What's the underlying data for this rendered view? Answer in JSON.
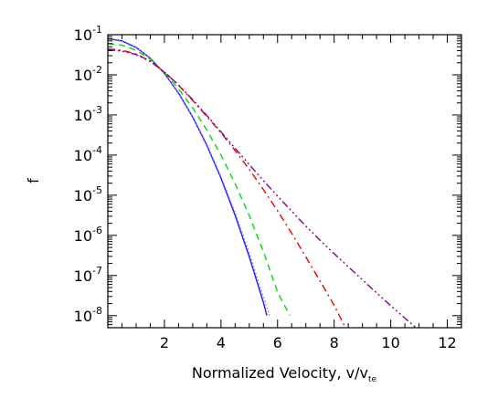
{
  "chart_data": {
    "type": "line",
    "title": "",
    "xlabel_main": "Normalized Velocity, v/v",
    "xlabel_sub": "te",
    "ylabel": "f",
    "xlim": [
      0,
      12.5
    ],
    "ylim_log10": [
      -8.3,
      -1
    ],
    "y_scale": "log",
    "grid": false,
    "legend": "none",
    "x_ticks": [
      {
        "v": 2,
        "label": "2"
      },
      {
        "v": 4,
        "label": "4"
      },
      {
        "v": 6,
        "label": "6"
      },
      {
        "v": 8,
        "label": "8"
      },
      {
        "v": 10,
        "label": "10"
      },
      {
        "v": 12,
        "label": "12"
      }
    ],
    "y_ticks": [
      {
        "exp": -1,
        "base": "10",
        "power": "-1"
      },
      {
        "exp": -2,
        "base": "10",
        "power": "-2"
      },
      {
        "exp": -3,
        "base": "10",
        "power": "-3"
      },
      {
        "exp": -4,
        "base": "10",
        "power": "-4"
      },
      {
        "exp": -5,
        "base": "10",
        "power": "-5"
      },
      {
        "exp": -6,
        "base": "10",
        "power": "-6"
      },
      {
        "exp": -7,
        "base": "10",
        "power": "-7"
      },
      {
        "exp": -8,
        "base": "10",
        "power": "-8"
      }
    ],
    "series": [
      {
        "color": "#1a1aff",
        "dash": "solid",
        "points": [
          [
            0.0,
            0.0795
          ],
          [
            0.5,
            0.07
          ],
          [
            1.0,
            0.048
          ],
          [
            1.5,
            0.026
          ],
          [
            2.0,
            0.0108
          ],
          [
            2.5,
            0.0035
          ],
          [
            3.0,
            0.00089
          ],
          [
            3.5,
            0.000175
          ],
          [
            4.0,
            2.67e-05
          ],
          [
            4.5,
            3.16e-06
          ],
          [
            5.0,
            2.93e-07
          ],
          [
            5.5,
            2.12e-08
          ],
          [
            5.62,
            1.01e-08
          ]
        ]
      },
      {
        "color": "#8080ff",
        "dash": "dotted",
        "points": [
          [
            0.0,
            0.077
          ],
          [
            0.5,
            0.068
          ],
          [
            1.0,
            0.047
          ],
          [
            1.5,
            0.0258
          ],
          [
            2.0,
            0.0108
          ],
          [
            2.5,
            0.0036
          ],
          [
            3.0,
            0.00092
          ],
          [
            3.5,
            0.000185
          ],
          [
            4.0,
            2.95e-05
          ],
          [
            4.5,
            3.7e-06
          ],
          [
            5.0,
            3.7e-07
          ],
          [
            5.5,
            2.9e-08
          ],
          [
            5.72,
            1.01e-08
          ]
        ]
      },
      {
        "color": "#00dd00",
        "dash": "dashed",
        "points": [
          [
            0.0,
            0.06
          ],
          [
            0.5,
            0.055
          ],
          [
            1.0,
            0.041
          ],
          [
            1.5,
            0.0245
          ],
          [
            2.0,
            0.0115
          ],
          [
            2.5,
            0.0045
          ],
          [
            3.0,
            0.0015
          ],
          [
            3.5,
            0.00042
          ],
          [
            4.0,
            0.0001
          ],
          [
            4.5,
            1.95e-05
          ],
          [
            5.0,
            3.1e-06
          ],
          [
            5.5,
            3.9e-07
          ],
          [
            6.0,
            3.9e-08
          ],
          [
            6.43,
            1.01e-08
          ]
        ]
      },
      {
        "color": "#ee0000",
        "dash": "dashdot",
        "points": [
          [
            0.0,
            0.044
          ],
          [
            0.5,
            0.041
          ],
          [
            1.0,
            0.033
          ],
          [
            1.5,
            0.022
          ],
          [
            2.0,
            0.0118
          ],
          [
            2.5,
            0.0055
          ],
          [
            3.0,
            0.0023
          ],
          [
            3.5,
            0.00092
          ],
          [
            4.0,
            0.00036
          ],
          [
            4.5,
            0.00013
          ],
          [
            5.0,
            4.4e-05
          ],
          [
            5.5,
            1.38e-05
          ],
          [
            6.0,
            4.1e-06
          ],
          [
            6.5,
            1.13e-06
          ],
          [
            7.0,
            2.9e-07
          ],
          [
            7.5,
            7.35e-08
          ],
          [
            8.0,
            1.81e-08
          ],
          [
            8.5,
            3.6e-09
          ],
          [
            9.0,
            6.8e-10
          ],
          [
            9.5,
            1.2e-10
          ],
          [
            9.62,
            5e-10
          ]
        ]
      },
      {
        "color": "#880088",
        "dash": "dashdotdotdot",
        "points": [
          [
            0.0,
            0.042
          ],
          [
            0.5,
            0.039
          ],
          [
            1.0,
            0.032
          ],
          [
            1.5,
            0.0215
          ],
          [
            2.0,
            0.0118
          ],
          [
            2.5,
            0.0056
          ],
          [
            3.0,
            0.0024
          ],
          [
            3.5,
            0.00097
          ],
          [
            4.0,
            0.00038
          ],
          [
            4.5,
            0.000148
          ],
          [
            5.0,
            5.8e-05
          ],
          [
            5.5,
            2.32e-05
          ],
          [
            6.0,
            9.5e-06
          ],
          [
            6.5,
            4e-06
          ],
          [
            7.0,
            1.7e-06
          ],
          [
            7.5,
            7.6e-07
          ],
          [
            8.0,
            3.5e-07
          ],
          [
            8.5,
            1.65e-07
          ],
          [
            9.0,
            7.8e-08
          ],
          [
            9.5,
            3.7e-08
          ],
          [
            10.0,
            1.78e-08
          ],
          [
            10.5,
            8.7e-09
          ],
          [
            11.0,
            4.3e-09
          ],
          [
            11.5,
            2.1e-09
          ],
          [
            12.0,
            1.03e-09
          ],
          [
            12.5,
            5e-10
          ]
        ]
      }
    ]
  }
}
